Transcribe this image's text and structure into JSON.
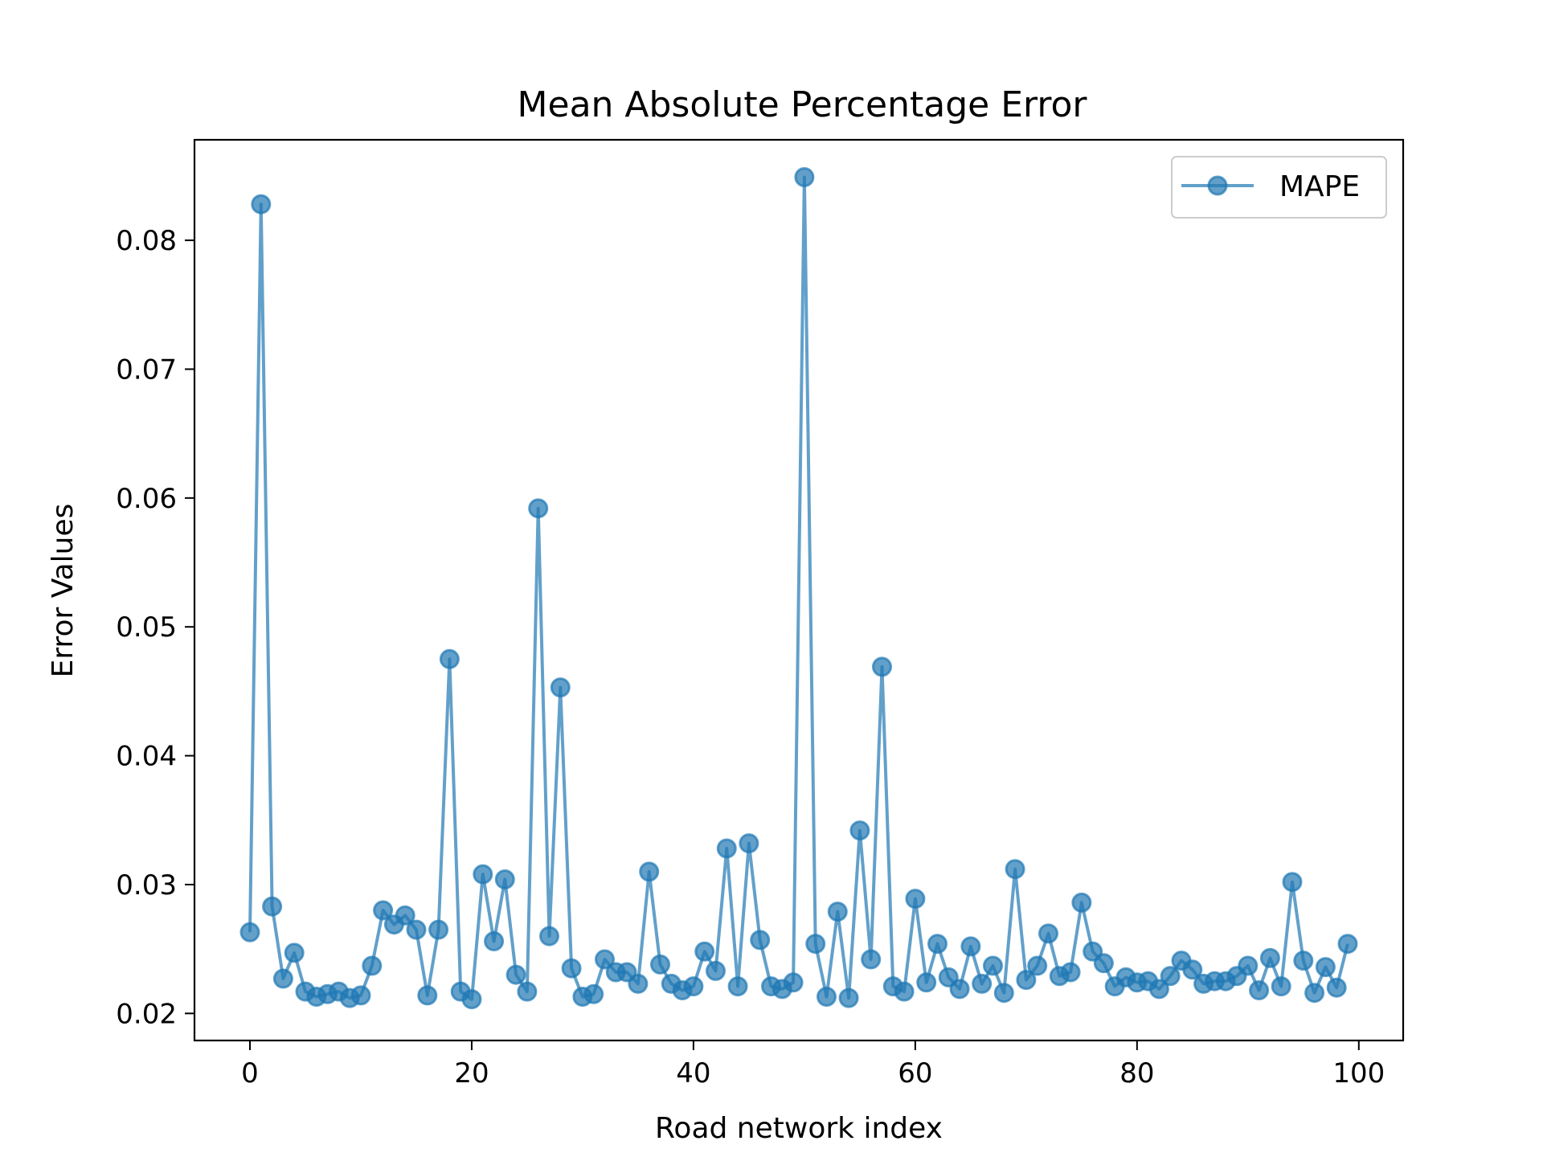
{
  "chart_data": {
    "type": "line",
    "title": "Mean Absolute Percentage Error",
    "xlabel": "Road network index",
    "ylabel": "Error Values",
    "xlim": [
      -5,
      104
    ],
    "ylim": [
      0.0179,
      0.0878
    ],
    "xticks": [
      0,
      20,
      40,
      60,
      80,
      100
    ],
    "xtick_labels": [
      "0",
      "20",
      "40",
      "60",
      "80",
      "100"
    ],
    "yticks": [
      0.02,
      0.03,
      0.04,
      0.05,
      0.06,
      0.07,
      0.08
    ],
    "ytick_labels": [
      "0.02",
      "0.03",
      "0.04",
      "0.05",
      "0.06",
      "0.07",
      "0.08"
    ],
    "grid": false,
    "legend_position": "top-right",
    "series": [
      {
        "name": "MAPE",
        "color": "#1f77b4",
        "marker": "circle",
        "x": [
          0,
          1,
          2,
          3,
          4,
          5,
          6,
          7,
          8,
          9,
          10,
          11,
          12,
          13,
          14,
          15,
          16,
          17,
          18,
          19,
          20,
          21,
          22,
          23,
          24,
          25,
          26,
          27,
          28,
          29,
          30,
          31,
          32,
          33,
          34,
          35,
          36,
          37,
          38,
          39,
          40,
          41,
          42,
          43,
          44,
          45,
          46,
          47,
          48,
          49,
          50,
          51,
          52,
          53,
          54,
          55,
          56,
          57,
          58,
          59,
          60,
          61,
          62,
          63,
          64,
          65,
          66,
          67,
          68,
          69,
          70,
          71,
          72,
          73,
          74,
          75,
          76,
          77,
          78,
          79,
          80,
          81,
          82,
          83,
          84,
          85,
          86,
          87,
          88,
          89,
          90,
          91,
          92,
          93,
          94,
          95,
          96,
          97,
          98,
          99
        ],
        "values": [
          0.0263,
          0.0828,
          0.0283,
          0.0227,
          0.0247,
          0.0217,
          0.0213,
          0.0215,
          0.0217,
          0.0212,
          0.0214,
          0.0237,
          0.028,
          0.0269,
          0.0276,
          0.0265,
          0.0214,
          0.0265,
          0.0475,
          0.0217,
          0.0211,
          0.0308,
          0.0256,
          0.0304,
          0.023,
          0.0217,
          0.0592,
          0.026,
          0.0453,
          0.0235,
          0.0213,
          0.0215,
          0.0242,
          0.0232,
          0.0232,
          0.0223,
          0.031,
          0.0238,
          0.0223,
          0.0218,
          0.0221,
          0.0248,
          0.0233,
          0.0328,
          0.0221,
          0.0332,
          0.0257,
          0.0221,
          0.0219,
          0.0224,
          0.0849,
          0.0254,
          0.0213,
          0.0279,
          0.0212,
          0.0342,
          0.0242,
          0.0469,
          0.0221,
          0.0217,
          0.0289,
          0.0224,
          0.0254,
          0.0228,
          0.0219,
          0.0252,
          0.0223,
          0.0237,
          0.0216,
          0.0312,
          0.0226,
          0.0237,
          0.0262,
          0.0229,
          0.0232,
          0.0286,
          0.0248,
          0.0239,
          0.0221,
          0.0228,
          0.0224,
          0.0225,
          0.0219,
          0.0229,
          0.0241,
          0.0234,
          0.0223,
          0.0225,
          0.0225,
          0.0229,
          0.0237,
          0.0218,
          0.0243,
          0.0221,
          0.0302,
          0.0241,
          0.0216,
          0.0236,
          0.022,
          0.0254
        ]
      }
    ]
  }
}
